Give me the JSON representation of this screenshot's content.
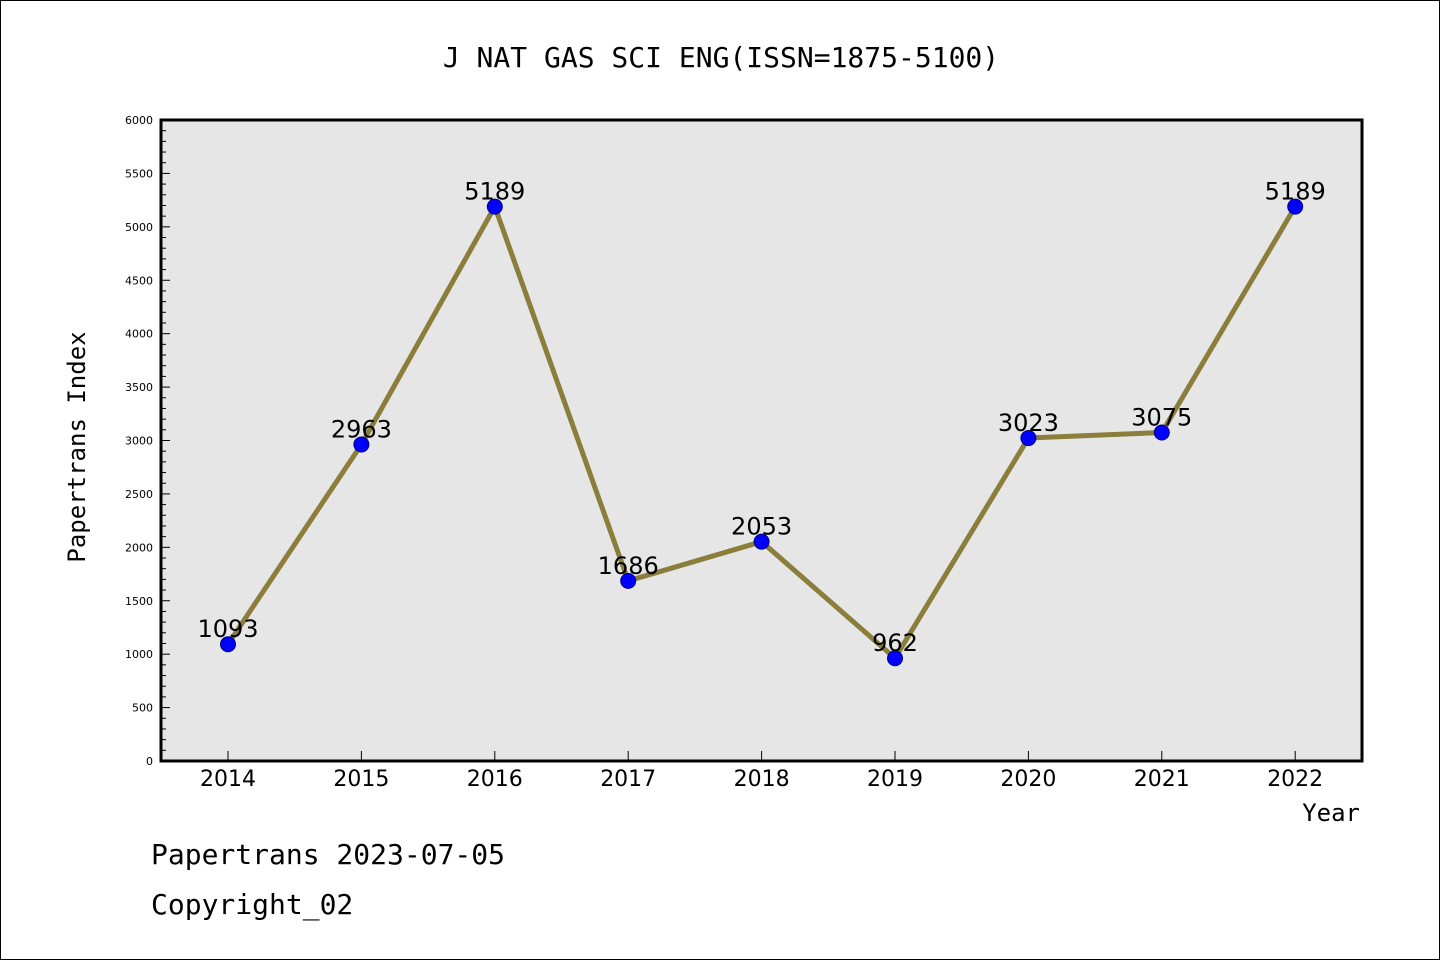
{
  "chart_data": {
    "type": "line",
    "title": "J NAT GAS SCI ENG(ISSN=1875-5100)",
    "xlabel": "Year",
    "ylabel": "Papertrans Index",
    "categories": [
      "2014",
      "2015",
      "2016",
      "2017",
      "2018",
      "2019",
      "2020",
      "2021",
      "2022"
    ],
    "series": [
      {
        "values": [
          1093,
          2963,
          5189,
          1686,
          2053,
          962,
          3023,
          3075,
          5189
        ]
      }
    ],
    "data_labels": [
      "1093",
      "2963",
      "5189",
      "1686",
      "2053",
      "962",
      "3023",
      "3075",
      "5189"
    ],
    "ylim": [
      0,
      6000
    ],
    "yticks": [
      0,
      500,
      1000,
      1500,
      2000,
      2500,
      3000,
      3500,
      4000,
      4500,
      5000,
      5500,
      6000
    ],
    "grid": false,
    "colors": {
      "line": "#8b7d3a",
      "marker": "#0000ff",
      "marker_edge": "#000080",
      "plot_background": "#e6e6e6"
    }
  },
  "footer": {
    "line1": "Papertrans 2023-07-05",
    "line2": "Copyright_02"
  }
}
